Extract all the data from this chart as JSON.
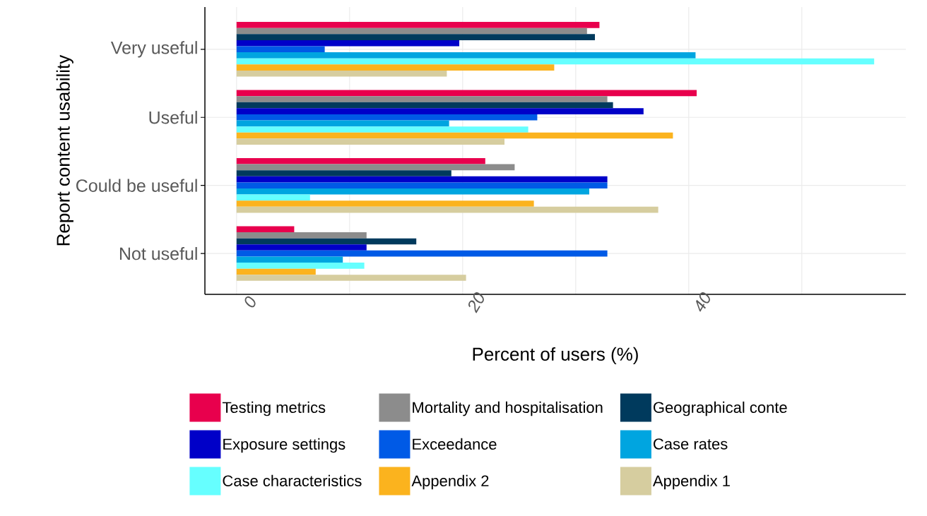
{
  "chart_data": {
    "type": "bar",
    "orientation": "horizontal",
    "xlabel": "Percent of users (%)",
    "ylabel": "Report content usability",
    "categories": [
      "Very useful",
      "Useful",
      "Could be useful",
      "Not useful"
    ],
    "series": [
      {
        "name": "Testing metrics",
        "color": "#e8004d",
        "values": [
          32.1,
          40.7,
          22.0,
          5.1
        ]
      },
      {
        "name": "Mortality and hospitalisation",
        "color": "#8c8c8c",
        "values": [
          31.0,
          32.8,
          24.6,
          11.5
        ]
      },
      {
        "name": "Geographical conte",
        "color": "#003a5d",
        "values": [
          31.7,
          33.3,
          19.0,
          15.9
        ]
      },
      {
        "name": "Exposure settings",
        "color": "#0000c8",
        "values": [
          19.7,
          36.0,
          32.8,
          11.5
        ]
      },
      {
        "name": "Exceedance",
        "color": "#005ae6",
        "values": [
          7.8,
          26.6,
          32.8,
          32.8
        ]
      },
      {
        "name": "Case rates",
        "color": "#00a5e0",
        "values": [
          40.6,
          18.8,
          31.2,
          9.4
        ]
      },
      {
        "name": "Case characteristics",
        "color": "#66ffff",
        "values": [
          56.4,
          25.8,
          6.5,
          11.3
        ]
      },
      {
        "name": "Appendix 2",
        "color": "#fbb31e",
        "values": [
          28.1,
          38.6,
          26.3,
          7.0
        ]
      },
      {
        "name": "Appendix 1",
        "color": "#d6cd9f",
        "values": [
          18.6,
          23.7,
          37.3,
          20.3
        ]
      }
    ],
    "xlim": [
      -2.8,
      59.2
    ],
    "xticks": [
      0,
      {
        "value": 10,
        "label": null
      },
      20,
      {
        "value": 30,
        "label": null
      },
      40,
      {
        "value": 50,
        "label": null
      }
    ],
    "grid": true,
    "legend": "bottom"
  }
}
